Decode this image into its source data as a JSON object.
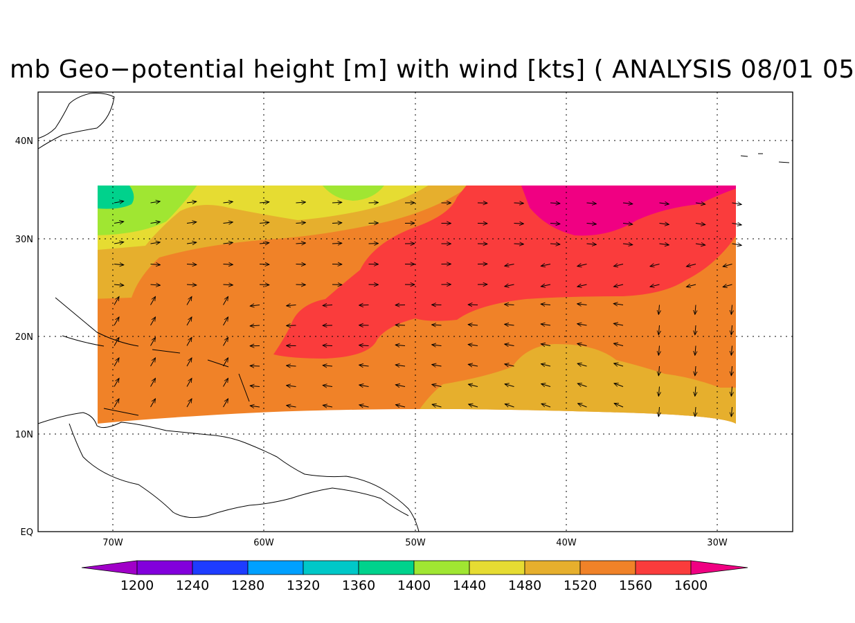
{
  "title": "mb Geo−potential height [m] with wind [kts] ( ANALYSIS 08/01 05",
  "axes": {
    "y_labels": [
      "40N",
      "30N",
      "20N",
      "10N",
      "EQ"
    ],
    "x_labels": [
      "70W",
      "60W",
      "50W",
      "40W",
      "30W"
    ]
  },
  "colorbar": {
    "ticks": [
      "1200",
      "1240",
      "1280",
      "1320",
      "1360",
      "1400",
      "1440",
      "1480",
      "1520",
      "1560",
      "1600"
    ],
    "colors": [
      "#a000c8",
      "#8200dc",
      "#1e3cff",
      "#00a0ff",
      "#00c8c8",
      "#00d28c",
      "#a0e632",
      "#e6dc32",
      "#e6af2d",
      "#f08228",
      "#fa3c3c",
      "#f00082"
    ]
  },
  "field_colors": {
    "c1400": "#00d28c",
    "c1440": "#a0e632",
    "c1480": "#e6dc32",
    "c1520": "#e6af2d",
    "c1560": "#f08228",
    "c1600": "#fa3c3c",
    "c1640": "#f00082"
  }
}
